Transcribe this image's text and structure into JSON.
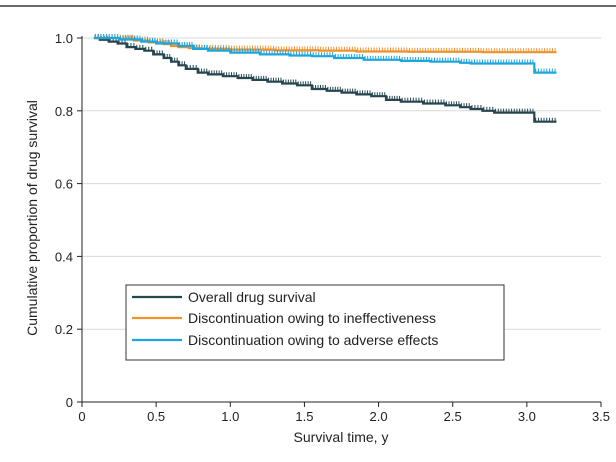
{
  "chart_data": {
    "type": "line",
    "title": "",
    "xlabel": "Survival time, y",
    "ylabel": "Cumulative proportion of drug survival",
    "xlim": [
      0,
      3.5
    ],
    "ylim": [
      0,
      1.0
    ],
    "x_ticks": [
      0,
      0.5,
      1.0,
      1.5,
      2.0,
      2.5,
      3.0,
      3.5
    ],
    "y_ticks": [
      0,
      0.2,
      0.4,
      0.6,
      0.8,
      1.0
    ],
    "x_tick_labels": [
      "0",
      "0.5",
      "1.0",
      "1.5",
      "2.0",
      "2.5",
      "3.0",
      "3.5"
    ],
    "y_tick_labels": [
      "0",
      "0.2",
      "0.4",
      "0.6",
      "0.8",
      "1.0"
    ],
    "grid": "horizontal",
    "legend_position": "lower-left",
    "series": [
      {
        "name": "Overall drug survival",
        "color": "#25464f",
        "style": "step",
        "x": [
          0.08,
          0.12,
          0.18,
          0.24,
          0.3,
          0.36,
          0.42,
          0.48,
          0.55,
          0.6,
          0.65,
          0.7,
          0.78,
          0.85,
          0.95,
          1.05,
          1.15,
          1.25,
          1.35,
          1.45,
          1.55,
          1.65,
          1.75,
          1.85,
          1.95,
          2.05,
          2.15,
          2.3,
          2.45,
          2.55,
          2.62,
          2.7,
          2.78,
          3.05,
          3.2
        ],
        "y": [
          1.0,
          0.995,
          0.99,
          0.985,
          0.975,
          0.97,
          0.965,
          0.955,
          0.945,
          0.935,
          0.925,
          0.915,
          0.905,
          0.9,
          0.895,
          0.89,
          0.885,
          0.88,
          0.875,
          0.87,
          0.86,
          0.855,
          0.85,
          0.845,
          0.84,
          0.83,
          0.825,
          0.82,
          0.815,
          0.81,
          0.805,
          0.8,
          0.795,
          0.77,
          0.77
        ]
      },
      {
        "name": "Discontinuation owing to ineffectiveness",
        "color": "#f0922b",
        "style": "step",
        "x": [
          0.08,
          0.25,
          0.35,
          0.45,
          0.55,
          0.6,
          0.65,
          0.72,
          0.8,
          1.0,
          1.3,
          1.6,
          1.85,
          2.2,
          2.7,
          3.2
        ],
        "y": [
          1.0,
          0.998,
          0.993,
          0.988,
          0.983,
          0.978,
          0.975,
          0.972,
          0.97,
          0.968,
          0.966,
          0.965,
          0.963,
          0.962,
          0.961,
          0.961
        ]
      },
      {
        "name": "Discontinuation owing to adverse effects",
        "color": "#1ca6dd",
        "style": "step",
        "x": [
          0.08,
          0.25,
          0.4,
          0.5,
          0.65,
          0.75,
          0.85,
          1.0,
          1.2,
          1.4,
          1.55,
          1.7,
          1.9,
          2.15,
          2.35,
          2.55,
          2.62,
          3.05,
          3.2
        ],
        "y": [
          1.0,
          0.996,
          0.99,
          0.985,
          0.978,
          0.97,
          0.965,
          0.96,
          0.955,
          0.952,
          0.95,
          0.945,
          0.94,
          0.937,
          0.935,
          0.932,
          0.93,
          0.905,
          0.905
        ]
      }
    ]
  }
}
